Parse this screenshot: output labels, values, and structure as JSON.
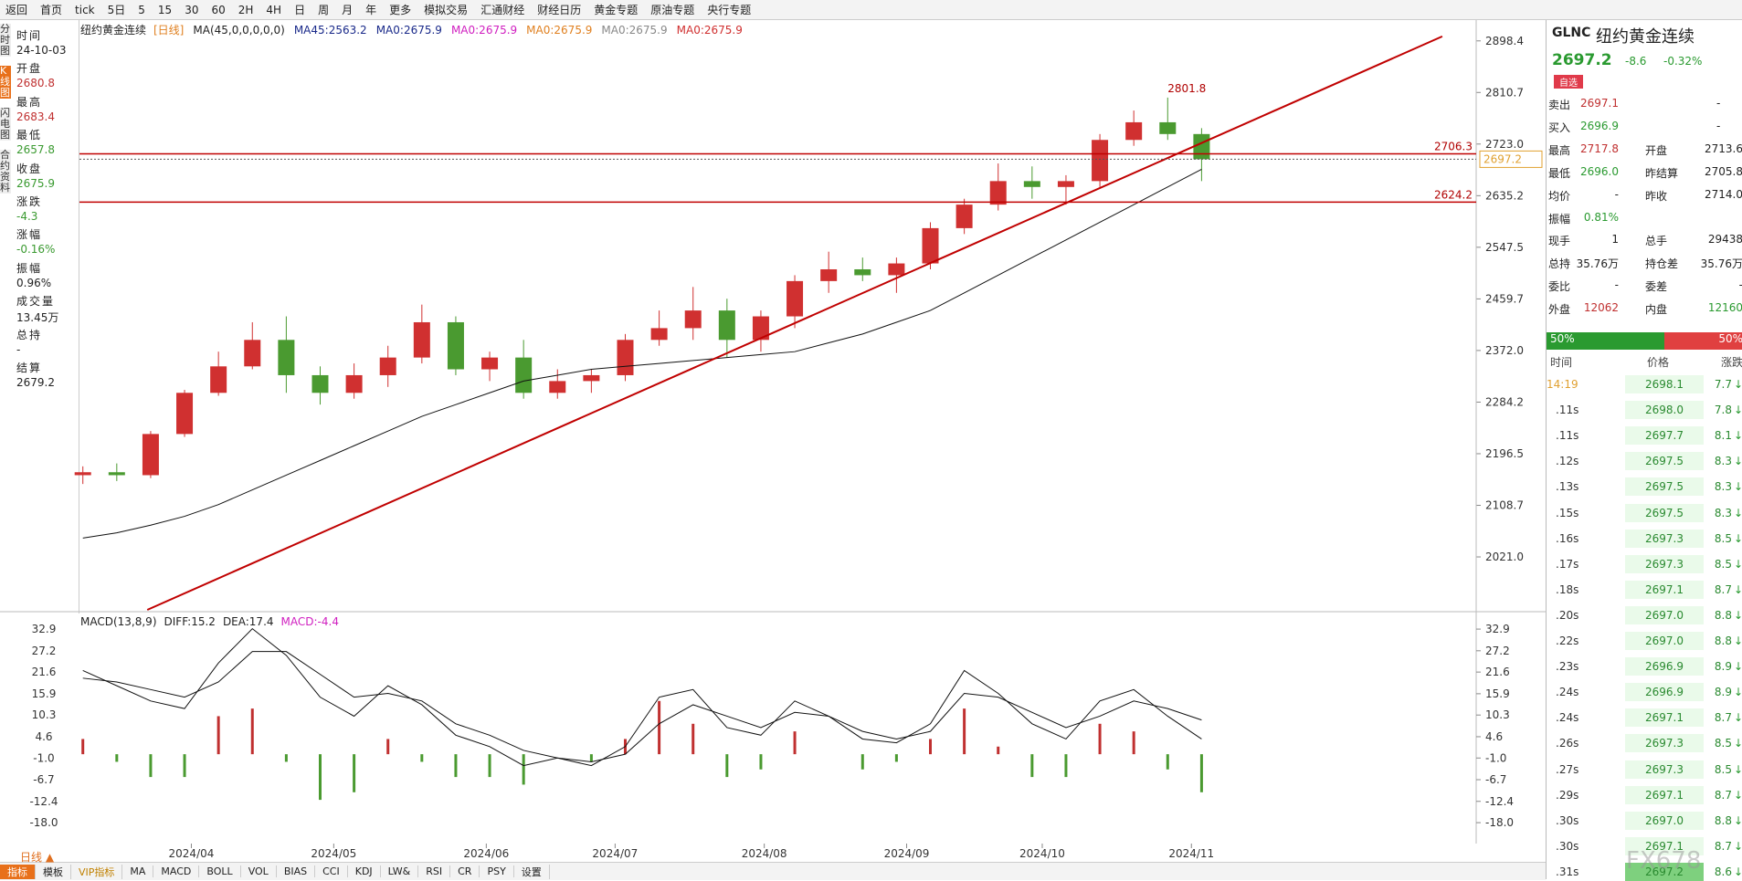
{
  "toolbar": [
    "返回",
    "首页",
    "tick",
    "5日",
    "5",
    "15",
    "30",
    "60",
    "2H",
    "4H",
    "日",
    "周",
    "月",
    "年",
    "更多",
    "模拟交易",
    "汇通财经",
    "财经日历",
    "黄金专题",
    "原油专题",
    "央行专题"
  ],
  "left_panel": {
    "tabs": [
      "分时图",
      "K线图",
      "闪电图",
      "合约资料"
    ],
    "fields": [
      [
        "时间",
        "24-10-03"
      ],
      [
        "开盘",
        "2680.8"
      ],
      [
        "最高",
        "2683.4"
      ],
      [
        "最低",
        "2657.8"
      ],
      [
        "收盘",
        "2675.9"
      ],
      [
        "涨跌",
        "-4.3"
      ],
      [
        "涨幅",
        "-0.16%"
      ],
      [
        "振幅",
        "0.96%"
      ],
      [
        "成交量",
        "13.45万"
      ],
      [
        "总持",
        "-"
      ],
      [
        "结算",
        "2679.2"
      ]
    ]
  },
  "chart_data": [
    {
      "type": "candlestick",
      "title": "纽约黄金连续",
      "legend": [
        "[日线]",
        "MA(45,0,0,0,0,0)",
        "MA45:2563.2",
        "MA0:2675.9",
        "MA0:2675.9",
        "MA0:2675.9",
        "MA0:2675.9",
        "MA0:2675.9"
      ],
      "legend_colors": [
        "#e08020",
        "#222",
        "#1a2a8a",
        "#1a2a8a",
        "#d020c0",
        "#e08020",
        "#888",
        "#d03030"
      ],
      "xlim": [
        -0.1,
        41.1
      ],
      "xticks": [
        {
          "value": 3.2,
          "label": "2024/04"
        },
        {
          "value": 7.4,
          "label": "2024/05"
        },
        {
          "value": 11.9,
          "label": "2024/06"
        },
        {
          "value": 15.7,
          "label": "2024/07"
        },
        {
          "value": 20.1,
          "label": "2024/08"
        },
        {
          "value": 24.3,
          "label": "2024/09"
        },
        {
          "value": 28.3,
          "label": "2024/10"
        },
        {
          "value": 32.7,
          "label": "2024/11"
        }
      ],
      "ylim": [
        1931,
        2926
      ],
      "yticks": [
        2898.4,
        2810.7,
        {
          "value": 2723,
          "label": "2723.0"
        },
        2635.2,
        2547.5,
        2459.7,
        {
          "value": 2372,
          "label": "2372.0"
        },
        2284.2,
        2196.5,
        2108.7,
        {
          "value": 2021,
          "label": "2021.0"
        }
      ],
      "open": [
        2160,
        2165,
        2160,
        2230,
        2300,
        2345,
        2390,
        2330,
        2300,
        2330,
        2360,
        2420,
        2340,
        2360,
        2300,
        2320,
        2330,
        2390,
        2410,
        2440,
        2390,
        2430,
        2490,
        2510,
        2500,
        2520,
        2580,
        2620,
        2660,
        2650,
        2660,
        2730,
        2760,
        2740
      ],
      "high": [
        2175,
        2180,
        2235,
        2305,
        2370,
        2420,
        2430,
        2345,
        2350,
        2380,
        2450,
        2430,
        2370,
        2390,
        2340,
        2340,
        2400,
        2440,
        2480,
        2460,
        2440,
        2500,
        2540,
        2530,
        2530,
        2590,
        2630,
        2690,
        2685,
        2670,
        2740,
        2780,
        2802,
        2750
      ],
      "low": [
        2145,
        2150,
        2155,
        2225,
        2295,
        2340,
        2300,
        2280,
        2290,
        2310,
        2350,
        2330,
        2320,
        2290,
        2290,
        2300,
        2320,
        2380,
        2390,
        2360,
        2370,
        2410,
        2470,
        2490,
        2470,
        2510,
        2570,
        2610,
        2630,
        2620,
        2650,
        2720,
        2730,
        2660
      ],
      "close": [
        2165,
        2160,
        2230,
        2300,
        2345,
        2390,
        2330,
        2300,
        2330,
        2360,
        2420,
        2340,
        2360,
        2300,
        2320,
        2330,
        2390,
        2410,
        2440,
        2390,
        2430,
        2490,
        2510,
        2500,
        2520,
        2580,
        2620,
        2660,
        2650,
        2660,
        2730,
        2760,
        2740,
        2697.2
      ],
      "ma45": [
        2053,
        2062,
        2075,
        2090,
        2110,
        2135,
        2160,
        2185,
        2210,
        2235,
        2260,
        2280,
        2300,
        2320,
        2330,
        2340,
        2345,
        2350,
        2355,
        2360,
        2365,
        2370,
        2385,
        2400,
        2420,
        2440,
        2470,
        2500,
        2530,
        2560,
        2590,
        2620,
        2650,
        2680
      ],
      "up_color": "#d03030",
      "down_color": "#4a9a30",
      "ma_color": "#111",
      "hlines": [
        {
          "value": 2706.3,
          "label": "2706.3"
        },
        {
          "value": 2624.2,
          "label": "2624.2"
        }
      ],
      "hline_color": "#c00000",
      "last": {
        "value": 2697.2,
        "label": "2697.2"
      },
      "high_mark": {
        "x": 32,
        "value": 2801.8,
        "label": "2801.8"
      },
      "trendline": {
        "x": [
          1.9,
          40.1
        ],
        "y": [
          1931,
          2906
        ],
        "color": "#c00000"
      }
    },
    {
      "type": "macd",
      "legend": [
        "MACD(13,8,9)",
        "DIFF:15.2",
        "DEA:17.4",
        "MACD:-4.4"
      ],
      "legend_colors": [
        "#222",
        "#222",
        "#222",
        "#d020c0"
      ],
      "ylim": [
        -23.5,
        37
      ],
      "yticks": [
        32.9,
        27.2,
        21.6,
        15.9,
        10.3,
        4.6,
        {
          "value": -1,
          "label": "-1.0"
        },
        -6.7,
        -12.4,
        {
          "value": -18,
          "label": "-18.0"
        }
      ],
      "diff": [
        22,
        18,
        14,
        12,
        24,
        33,
        26,
        15,
        10,
        18,
        13,
        5,
        2,
        -3,
        -1,
        -3,
        2,
        15,
        17,
        7,
        5,
        14,
        10,
        4,
        3,
        8,
        22,
        16,
        8,
        4,
        14,
        17,
        10,
        4
      ],
      "dea": [
        20,
        19,
        17,
        15,
        19,
        27,
        27,
        21,
        15,
        16,
        14,
        8,
        5,
        1,
        -1,
        -2,
        0,
        8,
        13,
        10,
        7,
        11,
        10,
        6,
        4,
        6,
        16,
        15,
        11,
        7,
        10,
        14,
        12,
        9
      ],
      "macd": [
        4,
        -2,
        -6,
        -6,
        10,
        12,
        -2,
        -12,
        -10,
        4,
        -2,
        -6,
        -6,
        -8,
        0,
        -2,
        4,
        14,
        8,
        -6,
        -4,
        6,
        0,
        -4,
        -2,
        4,
        12,
        2,
        -6,
        -6,
        8,
        6,
        -4,
        -10
      ],
      "up_color": "#c03030",
      "down_color": "#4a9a30"
    }
  ],
  "bottom": {
    "period": "日线 ▲",
    "tabs": [
      "指标",
      "模板",
      "VIP指标",
      "MA",
      "MACD",
      "BOLL",
      "VOL",
      "BIAS",
      "CCI",
      "KDJ",
      "LW&",
      "RSI",
      "CR",
      "PSY",
      "设置"
    ]
  },
  "right_panel": {
    "code": "GLNC",
    "name": "纽约黄金连续",
    "price": "2697.2",
    "change": "-8.6",
    "pct": "-0.32%",
    "button": "自选",
    "quote_rows": [
      [
        "卖出",
        "2697.1",
        "-"
      ],
      [
        "买入",
        "2696.9",
        "-"
      ],
      [
        "最高",
        "2717.8",
        "开盘",
        "2713.6"
      ],
      [
        "最低",
        "2696.0",
        "昨结算",
        "2705.8"
      ],
      [
        "均价",
        "-",
        "昨收",
        "2714.0"
      ],
      [
        "振幅",
        "0.81%"
      ],
      [
        "现手",
        "1",
        "总手",
        "29438"
      ],
      [
        "总持",
        "35.76万",
        "持仓差",
        "35.76万"
      ],
      [
        "委比",
        "-",
        "委差",
        "-"
      ],
      [
        "外盘",
        "12062",
        "内盘",
        "12160"
      ]
    ],
    "ratio": [
      "50%",
      "50%"
    ],
    "tick_header": [
      "时间",
      "价格",
      "涨跌"
    ],
    "ticks": [
      [
        "14:19",
        "2698.1",
        "7.7"
      ],
      [
        ".11s",
        "2698.0",
        "7.8"
      ],
      [
        ".11s",
        "2697.7",
        "8.1"
      ],
      [
        ".12s",
        "2697.5",
        "8.3"
      ],
      [
        ".13s",
        "2697.5",
        "8.3"
      ],
      [
        ".15s",
        "2697.5",
        "8.3"
      ],
      [
        ".16s",
        "2697.3",
        "8.5"
      ],
      [
        ".17s",
        "2697.3",
        "8.5"
      ],
      [
        ".18s",
        "2697.1",
        "8.7"
      ],
      [
        ".20s",
        "2697.0",
        "8.8"
      ],
      [
        ".22s",
        "2697.0",
        "8.8"
      ],
      [
        ".23s",
        "2696.9",
        "8.9"
      ],
      [
        ".24s",
        "2696.9",
        "8.9"
      ],
      [
        ".24s",
        "2697.1",
        "8.7"
      ],
      [
        ".26s",
        "2697.3",
        "8.5"
      ],
      [
        ".27s",
        "2697.3",
        "8.5"
      ],
      [
        ".29s",
        "2697.1",
        "8.7"
      ],
      [
        ".30s",
        "2697.0",
        "8.8"
      ],
      [
        ".30s",
        "2697.1",
        "8.7"
      ],
      [
        ".31s",
        "2697.2",
        "8.6"
      ]
    ],
    "watermark": "FX678"
  }
}
